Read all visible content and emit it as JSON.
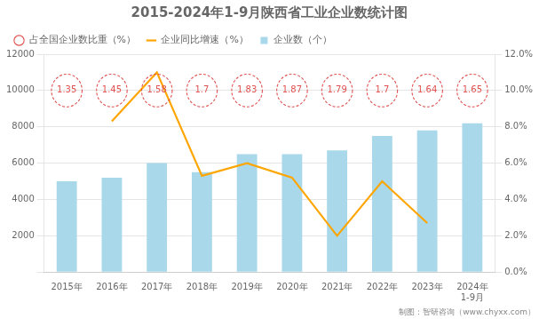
{
  "chart_data": {
    "type": "bar",
    "title": "2015-2024年1-9月陕西省工业企业数统计图",
    "annotations": [
      "制图：智研咨询（www.chyxx.com）"
    ],
    "categories": [
      "2015年",
      "2016年",
      "2017年",
      "2018年",
      "2019年",
      "2020年",
      "2021年",
      "2022年",
      "2023年",
      "2024年\n1-9月"
    ],
    "series": [
      {
        "name": "企业数（个）",
        "type": "bar",
        "color": "#A8D8EA",
        "values": [
          5000,
          5200,
          6000,
          5500,
          6500,
          6500,
          6700,
          7500,
          7800,
          8200
        ]
      },
      {
        "name": "占全国企业数比重（%）",
        "type": "scatter",
        "marker": "circle",
        "line_style": "dashed",
        "color": "#E05050",
        "data_labels": true,
        "values": [
          1.35,
          1.45,
          1.58,
          1.7,
          1.83,
          1.87,
          1.79,
          1.7,
          1.64,
          1.65
        ]
      },
      {
        "name": "企业同比增速（%）",
        "type": "line",
        "axis": "y2",
        "color": "#FFA500",
        "values": [
          null,
          0.083,
          0.11,
          0.053,
          0.06,
          0.052,
          0.02,
          0.05,
          0.027,
          null
        ]
      }
    ],
    "ylim": [
      0,
      12000
    ],
    "yticks": [
      {
        "value": 0,
        "label": ""
      },
      2000,
      4000,
      6000,
      8000,
      10000,
      12000
    ],
    "y2lim": [
      0,
      0.12
    ],
    "y2ticks": [
      {
        "value": 0.0,
        "label": "0.0%"
      },
      {
        "value": 0.02,
        "label": "2.0%"
      },
      {
        "value": 0.04,
        "label": "4.0%"
      },
      {
        "value": 0.06,
        "label": "6.0%"
      },
      {
        "value": 0.08,
        "label": "8.0%"
      },
      {
        "value": 0.1,
        "label": "10.0%"
      },
      {
        "value": 0.12,
        "label": "12.0%"
      }
    ],
    "grid": true,
    "legend": "upper left"
  }
}
